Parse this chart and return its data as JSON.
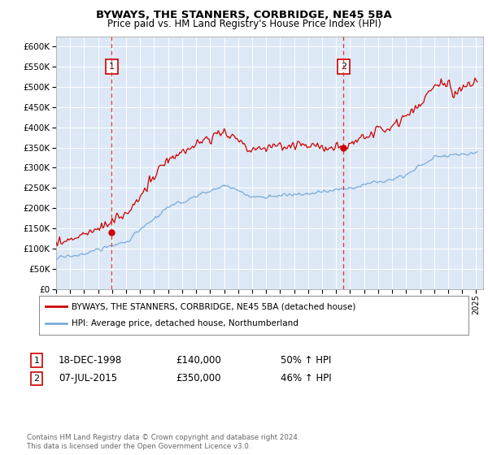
{
  "title": "BYWAYS, THE STANNERS, CORBRIDGE, NE45 5BA",
  "subtitle": "Price paid vs. HM Land Registry's House Price Index (HPI)",
  "bg_color": "#dce8f5",
  "red_color": "#cc0000",
  "blue_color": "#7aacda",
  "dashed_color": "#dd3333",
  "ylim": [
    0,
    620000
  ],
  "yticks": [
    0,
    50000,
    100000,
    150000,
    200000,
    250000,
    300000,
    350000,
    400000,
    450000,
    500000,
    550000,
    600000
  ],
  "sale1_date": 1998.96,
  "sale1_price": 140000,
  "sale1_label": "1",
  "sale2_date": 2015.52,
  "sale2_price": 350000,
  "sale2_label": "2",
  "legend_red": "BYWAYS, THE STANNERS, CORBRIDGE, NE45 5BA (detached house)",
  "legend_blue": "HPI: Average price, detached house, Northumberland",
  "table_rows": [
    {
      "num": "1",
      "date": "18-DEC-1998",
      "price": "£140,000",
      "hpi": "50% ↑ HPI"
    },
    {
      "num": "2",
      "date": "07-JUL-2015",
      "price": "£350,000",
      "hpi": "46% ↑ HPI"
    }
  ],
  "footer": "Contains HM Land Registry data © Crown copyright and database right 2024.\nThis data is licensed under the Open Government Licence v3.0."
}
